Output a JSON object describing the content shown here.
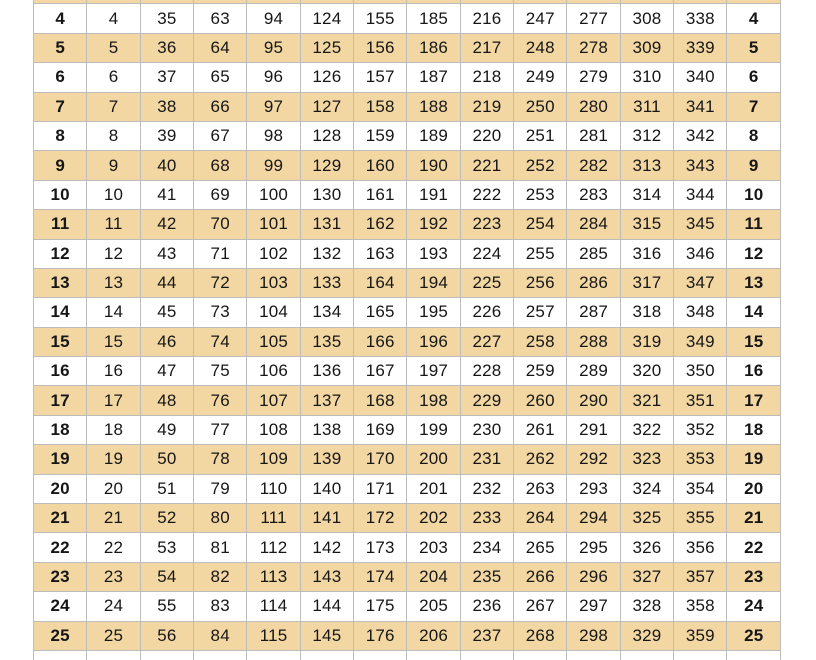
{
  "colors": {
    "page_background": "#ffffff",
    "row_highlight": "#f3d7a2",
    "row_plain": "#ffffff",
    "grid_border": "#bcbcbc",
    "text": "#161616"
  },
  "table": {
    "name": "day-of-year-lookup-table",
    "visible_day_range": [
      4,
      25
    ],
    "rows": [
      {
        "day": 4,
        "values": [
          4,
          35,
          63,
          94,
          124,
          155,
          185,
          216,
          247,
          277,
          308,
          338
        ]
      },
      {
        "day": 5,
        "values": [
          5,
          36,
          64,
          95,
          125,
          156,
          186,
          217,
          248,
          278,
          309,
          339
        ]
      },
      {
        "day": 6,
        "values": [
          6,
          37,
          65,
          96,
          126,
          157,
          187,
          218,
          249,
          279,
          310,
          340
        ]
      },
      {
        "day": 7,
        "values": [
          7,
          38,
          66,
          97,
          127,
          158,
          188,
          219,
          250,
          280,
          311,
          341
        ]
      },
      {
        "day": 8,
        "values": [
          8,
          39,
          67,
          98,
          128,
          159,
          189,
          220,
          251,
          281,
          312,
          342
        ]
      },
      {
        "day": 9,
        "values": [
          9,
          40,
          68,
          99,
          129,
          160,
          190,
          221,
          252,
          282,
          313,
          343
        ]
      },
      {
        "day": 10,
        "values": [
          10,
          41,
          69,
          100,
          130,
          161,
          191,
          222,
          253,
          283,
          314,
          344
        ]
      },
      {
        "day": 11,
        "values": [
          11,
          42,
          70,
          101,
          131,
          162,
          192,
          223,
          254,
          284,
          315,
          345
        ]
      },
      {
        "day": 12,
        "values": [
          12,
          43,
          71,
          102,
          132,
          163,
          193,
          224,
          255,
          285,
          316,
          346
        ]
      },
      {
        "day": 13,
        "values": [
          13,
          44,
          72,
          103,
          133,
          164,
          194,
          225,
          256,
          286,
          317,
          347
        ]
      },
      {
        "day": 14,
        "values": [
          14,
          45,
          73,
          104,
          134,
          165,
          195,
          226,
          257,
          287,
          318,
          348
        ]
      },
      {
        "day": 15,
        "values": [
          15,
          46,
          74,
          105,
          135,
          166,
          196,
          227,
          258,
          288,
          319,
          349
        ]
      },
      {
        "day": 16,
        "values": [
          16,
          47,
          75,
          106,
          136,
          167,
          197,
          228,
          259,
          289,
          320,
          350
        ]
      },
      {
        "day": 17,
        "values": [
          17,
          48,
          76,
          107,
          137,
          168,
          198,
          229,
          260,
          290,
          321,
          351
        ]
      },
      {
        "day": 18,
        "values": [
          18,
          49,
          77,
          108,
          138,
          169,
          199,
          230,
          261,
          291,
          322,
          352
        ]
      },
      {
        "day": 19,
        "values": [
          19,
          50,
          78,
          109,
          139,
          170,
          200,
          231,
          262,
          292,
          323,
          353
        ]
      },
      {
        "day": 20,
        "values": [
          20,
          51,
          79,
          110,
          140,
          171,
          201,
          232,
          263,
          293,
          324,
          354
        ]
      },
      {
        "day": 21,
        "values": [
          21,
          52,
          80,
          111,
          141,
          172,
          202,
          233,
          264,
          294,
          325,
          355
        ]
      },
      {
        "day": 22,
        "values": [
          22,
          53,
          81,
          112,
          142,
          173,
          203,
          234,
          265,
          295,
          326,
          356
        ]
      },
      {
        "day": 23,
        "values": [
          23,
          54,
          82,
          113,
          143,
          174,
          204,
          235,
          266,
          296,
          327,
          357
        ]
      },
      {
        "day": 24,
        "values": [
          24,
          55,
          83,
          114,
          144,
          175,
          205,
          236,
          267,
          297,
          328,
          358
        ]
      },
      {
        "day": 25,
        "values": [
          25,
          56,
          84,
          115,
          145,
          176,
          206,
          237,
          268,
          298,
          329,
          359
        ]
      }
    ]
  }
}
